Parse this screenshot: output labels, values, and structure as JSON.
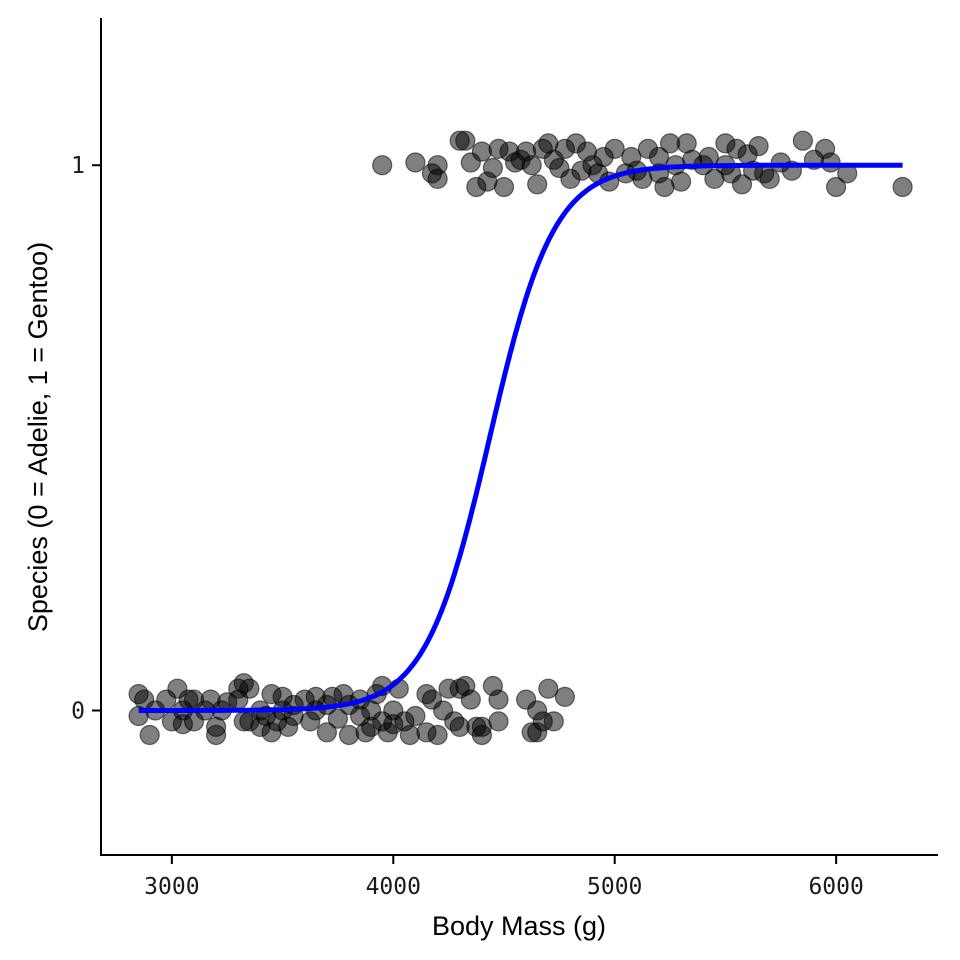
{
  "chart_data": {
    "type": "scatter",
    "title": "",
    "xlabel": "Body Mass (g)",
    "ylabel": "Species (0 = Adelie, 1 = Gentoo)",
    "xlim": [
      2680,
      6460
    ],
    "ylim": [
      -0.265,
      1.27
    ],
    "x_ticks": [
      3000,
      4000,
      5000,
      6000
    ],
    "x_tick_labels": [
      "3000",
      "4000",
      "5000",
      "6000"
    ],
    "y_ticks": [
      0,
      1
    ],
    "y_tick_labels": [
      "0",
      "1"
    ],
    "grid": false,
    "legend": "none",
    "point_color": "#000000",
    "point_alpha": 0.5,
    "fit_color": "#0000ff",
    "series": [
      {
        "kind": "points",
        "points": [
          [
            2850,
            0.03
          ],
          [
            2850,
            -0.01
          ],
          [
            2875,
            0.02
          ],
          [
            2900,
            -0.045
          ],
          [
            2925,
            0.0
          ],
          [
            2975,
            0.02
          ],
          [
            3000,
            -0.02
          ],
          [
            3025,
            0.04
          ],
          [
            3050,
            0.0
          ],
          [
            3075,
            0.02
          ],
          [
            3050,
            -0.025
          ],
          [
            3100,
            -0.02
          ],
          [
            3100,
            0.02
          ],
          [
            3150,
            0.0
          ],
          [
            3175,
            0.02
          ],
          [
            3200,
            -0.03
          ],
          [
            3200,
            -0.045
          ],
          [
            3225,
            0.0
          ],
          [
            3250,
            0.015
          ],
          [
            3300,
            0.04
          ],
          [
            3300,
            0.02
          ],
          [
            3325,
            0.05
          ],
          [
            3325,
            -0.02
          ],
          [
            3350,
            0.04
          ],
          [
            3350,
            -0.02
          ],
          [
            3400,
            0.0
          ],
          [
            3400,
            -0.03
          ],
          [
            3425,
            -0.01
          ],
          [
            3450,
            0.03
          ],
          [
            3450,
            -0.04
          ],
          [
            3475,
            -0.02
          ],
          [
            3500,
            0.0
          ],
          [
            3500,
            0.025
          ],
          [
            3525,
            -0.03
          ],
          [
            3550,
            -0.01
          ],
          [
            3550,
            0.01
          ],
          [
            3600,
            0.02
          ],
          [
            3625,
            -0.02
          ],
          [
            3650,
            0.025
          ],
          [
            3650,
            0.0
          ],
          [
            3700,
            0.01
          ],
          [
            3700,
            -0.04
          ],
          [
            3725,
            0.025
          ],
          [
            3750,
            -0.015
          ],
          [
            3775,
            0.03
          ],
          [
            3800,
            -0.045
          ],
          [
            3800,
            0.01
          ],
          [
            3850,
            0.02
          ],
          [
            3850,
            -0.01
          ],
          [
            3875,
            -0.04
          ],
          [
            3900,
            0.0
          ],
          [
            3900,
            -0.03
          ],
          [
            3925,
            0.03
          ],
          [
            3950,
            -0.02
          ],
          [
            3950,
            0.045
          ],
          [
            3975,
            -0.04
          ],
          [
            4000,
            0.0
          ],
          [
            4000,
            -0.025
          ],
          [
            4025,
            0.04
          ],
          [
            4050,
            -0.02
          ],
          [
            4075,
            -0.045
          ],
          [
            4100,
            -0.01
          ],
          [
            4150,
            0.03
          ],
          [
            4150,
            -0.04
          ],
          [
            4175,
            0.02
          ],
          [
            4200,
            -0.045
          ],
          [
            4225,
            0.0
          ],
          [
            4250,
            0.04
          ],
          [
            4275,
            -0.02
          ],
          [
            4300,
            0.04
          ],
          [
            4300,
            -0.03
          ],
          [
            4325,
            0.045
          ],
          [
            4350,
            0.02
          ],
          [
            4375,
            -0.03
          ],
          [
            4400,
            -0.045
          ],
          [
            4400,
            -0.03
          ],
          [
            4450,
            0.045
          ],
          [
            4475,
            0.02
          ],
          [
            4475,
            -0.02
          ],
          [
            4600,
            0.02
          ],
          [
            4625,
            -0.04
          ],
          [
            4650,
            0.0
          ],
          [
            4650,
            -0.04
          ],
          [
            4675,
            -0.02
          ],
          [
            4700,
            0.04
          ],
          [
            4725,
            -0.02
          ],
          [
            4775,
            0.025
          ],
          [
            3950,
            1.0
          ],
          [
            4100,
            1.005
          ],
          [
            4175,
            0.985
          ],
          [
            4200,
            1.0
          ],
          [
            4200,
            0.975
          ],
          [
            4300,
            1.045
          ],
          [
            4325,
            1.045
          ],
          [
            4350,
            1.005
          ],
          [
            4375,
            0.96
          ],
          [
            4400,
            1.025
          ],
          [
            4425,
            0.97
          ],
          [
            4450,
            0.995
          ],
          [
            4475,
            1.03
          ],
          [
            4500,
            0.96
          ],
          [
            4525,
            1.025
          ],
          [
            4550,
            1.005
          ],
          [
            4575,
            1.01
          ],
          [
            4600,
            1.025
          ],
          [
            4625,
            1.0
          ],
          [
            4650,
            0.965
          ],
          [
            4675,
            1.03
          ],
          [
            4700,
            1.04
          ],
          [
            4725,
            1.01
          ],
          [
            4750,
            0.995
          ],
          [
            4775,
            1.03
          ],
          [
            4800,
            0.975
          ],
          [
            4825,
            1.04
          ],
          [
            4850,
            0.99
          ],
          [
            4875,
            1.025
          ],
          [
            4900,
            1.0
          ],
          [
            4925,
            0.985
          ],
          [
            4950,
            1.015
          ],
          [
            4975,
            0.97
          ],
          [
            5000,
            1.03
          ],
          [
            5050,
            0.985
          ],
          [
            5075,
            1.015
          ],
          [
            5100,
            0.99
          ],
          [
            5125,
            0.975
          ],
          [
            5150,
            1.03
          ],
          [
            5200,
            1.015
          ],
          [
            5200,
            0.985
          ],
          [
            5225,
            0.96
          ],
          [
            5250,
            1.04
          ],
          [
            5275,
            1.0
          ],
          [
            5300,
            0.97
          ],
          [
            5325,
            1.04
          ],
          [
            5350,
            1.01
          ],
          [
            5400,
            1.0
          ],
          [
            5425,
            1.015
          ],
          [
            5450,
            0.975
          ],
          [
            5500,
            1.04
          ],
          [
            5500,
            1.0
          ],
          [
            5525,
            0.985
          ],
          [
            5550,
            1.03
          ],
          [
            5575,
            0.965
          ],
          [
            5600,
            1.02
          ],
          [
            5625,
            0.99
          ],
          [
            5650,
            1.035
          ],
          [
            5675,
            0.985
          ],
          [
            5700,
            0.975
          ],
          [
            5750,
            1.005
          ],
          [
            5800,
            0.99
          ],
          [
            5850,
            1.045
          ],
          [
            5900,
            1.01
          ],
          [
            5950,
            1.03
          ],
          [
            5975,
            1.005
          ],
          [
            6000,
            0.96
          ],
          [
            6050,
            0.985
          ],
          [
            6300,
            0.96
          ]
        ]
      },
      {
        "kind": "logistic-fit",
        "x_range": [
          2850,
          6300
        ],
        "midpoint": 4435,
        "slope": 0.0069
      }
    ]
  }
}
